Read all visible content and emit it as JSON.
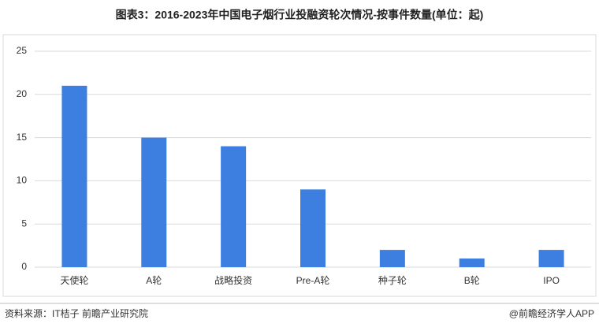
{
  "chart_data": {
    "type": "bar",
    "title": "图表3：2016-2023年中国电子烟行业投融资轮次情况-按事件数量(单位：起)",
    "categories": [
      "天使轮",
      "A轮",
      "战略投资",
      "Pre-A轮",
      "种子轮",
      "B轮",
      "IPO"
    ],
    "values": [
      21,
      15,
      14,
      9,
      2,
      1,
      2
    ],
    "color": "#3d7fe0",
    "ylim": [
      0,
      25
    ],
    "yticks": [
      0,
      5,
      10,
      15,
      20,
      25
    ],
    "grid": true
  },
  "source": "资料来源：IT桔子 前瞻产业研究院",
  "credit": "@前瞻经济学人APP"
}
